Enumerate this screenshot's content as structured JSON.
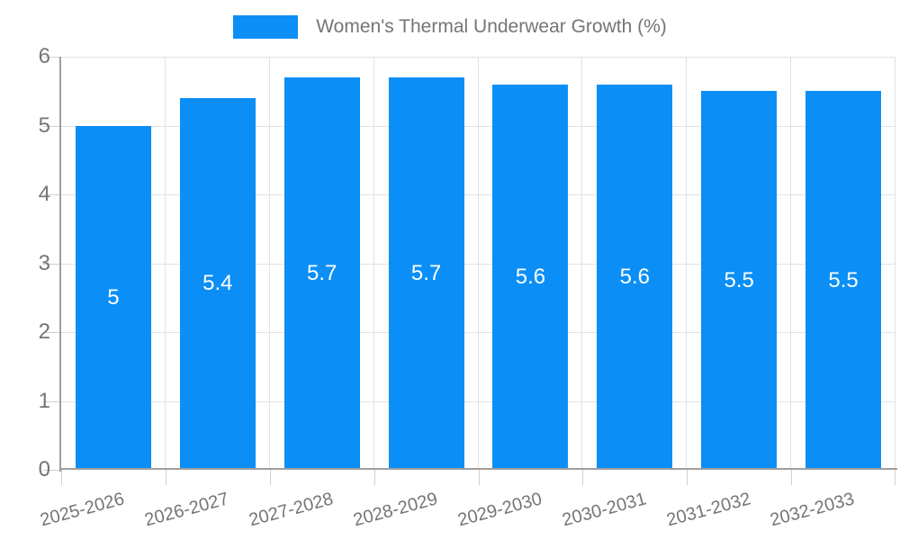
{
  "chart_data": {
    "type": "bar",
    "title": "Women's Thermal Underwear Growth (%)",
    "categories": [
      "2025-2026",
      "2026-2027",
      "2027-2028",
      "2028-2029",
      "2029-2030",
      "2030-2031",
      "2031-2032",
      "2032-2033"
    ],
    "values": [
      5,
      5.4,
      5.7,
      5.7,
      5.6,
      5.6,
      5.5,
      5.5
    ],
    "value_labels": [
      "5",
      "5.4",
      "5.7",
      "5.7",
      "5.6",
      "5.6",
      "5.5",
      "5.5"
    ],
    "xlabel": "",
    "ylabel": "",
    "ylim": [
      0,
      6
    ],
    "yticks": [
      "0",
      "1",
      "2",
      "3",
      "4",
      "5",
      "6"
    ],
    "grid": true,
    "legend_position": "top-center",
    "legend_entries": [
      "Women's Thermal Underwear Growth (%)"
    ]
  },
  "colors": {
    "bar": "#0b8ff6",
    "bar_value_text": "#ffffff",
    "axis_text": "#757575",
    "legend_text": "#757575",
    "gridline": "#e2e2e2",
    "tick": "#cfcfcf",
    "axis_line": "#9e9e9e",
    "background": "#ffffff"
  }
}
